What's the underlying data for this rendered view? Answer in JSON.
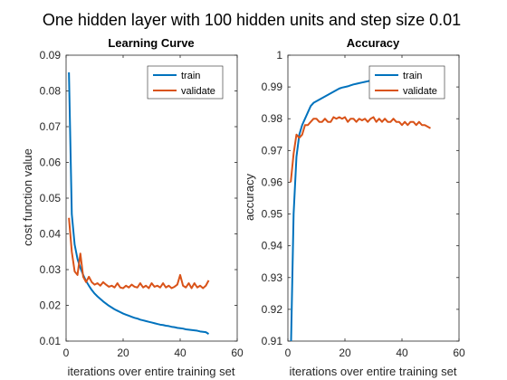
{
  "figure": {
    "title": "One hidden layer with 100 hidden units and step size 0.01"
  },
  "colors": {
    "train": "#0072BD",
    "validate": "#D95319",
    "axis": "#262626"
  },
  "chart_data": [
    {
      "type": "line",
      "title": "Learning Curve",
      "xlabel": "iterations over entire training set",
      "ylabel": "cost function value",
      "xlim": [
        0,
        60
      ],
      "ylim": [
        0.01,
        0.09
      ],
      "xticks": [
        0,
        20,
        40,
        60
      ],
      "yticks": [
        0.01,
        0.02,
        0.03,
        0.04,
        0.05,
        0.06,
        0.07,
        0.08,
        0.09
      ],
      "xtick_labels": [
        "0",
        "20",
        "40",
        "60"
      ],
      "ytick_labels": [
        "0.01",
        "0.02",
        "0.03",
        "0.04",
        "0.05",
        "0.06",
        "0.07",
        "0.08",
        "0.09"
      ],
      "legend_position": "top-right",
      "grid": false,
      "x": [
        1,
        2,
        3,
        4,
        5,
        6,
        7,
        8,
        9,
        10,
        11,
        12,
        13,
        14,
        15,
        16,
        17,
        18,
        19,
        20,
        21,
        22,
        23,
        24,
        25,
        26,
        27,
        28,
        29,
        30,
        31,
        32,
        33,
        34,
        35,
        36,
        37,
        38,
        39,
        40,
        41,
        42,
        43,
        44,
        45,
        46,
        47,
        48,
        49,
        50
      ],
      "series": [
        {
          "name": "train",
          "values": [
            0.0852,
            0.0455,
            0.037,
            0.033,
            0.0305,
            0.0285,
            0.0268,
            0.0255,
            0.0243,
            0.0233,
            0.0225,
            0.0218,
            0.0211,
            0.0205,
            0.0199,
            0.0194,
            0.0189,
            0.0185,
            0.0181,
            0.0177,
            0.0174,
            0.0171,
            0.0168,
            0.0165,
            0.0163,
            0.016,
            0.0158,
            0.0156,
            0.0154,
            0.0152,
            0.015,
            0.0148,
            0.0146,
            0.0145,
            0.0143,
            0.0142,
            0.014,
            0.0139,
            0.0137,
            0.0136,
            0.0135,
            0.0133,
            0.0132,
            0.0131,
            0.013,
            0.0129,
            0.0127,
            0.0126,
            0.0125,
            0.012
          ]
        },
        {
          "name": "validate",
          "values": [
            0.0445,
            0.035,
            0.0295,
            0.0285,
            0.0345,
            0.028,
            0.0265,
            0.028,
            0.0265,
            0.0258,
            0.0262,
            0.0255,
            0.0265,
            0.0258,
            0.0252,
            0.0255,
            0.025,
            0.0262,
            0.025,
            0.0248,
            0.0255,
            0.025,
            0.0258,
            0.0252,
            0.025,
            0.0262,
            0.025,
            0.0255,
            0.0248,
            0.0262,
            0.0252,
            0.0255,
            0.025,
            0.0262,
            0.025,
            0.0255,
            0.0248,
            0.0252,
            0.0258,
            0.0285,
            0.0255,
            0.025,
            0.0262,
            0.0248,
            0.0262,
            0.025,
            0.0255,
            0.0248,
            0.0255,
            0.027
          ]
        }
      ]
    },
    {
      "type": "line",
      "title": "Accuracy",
      "xlabel": "iterations over entire training set",
      "ylabel": "accuracy",
      "xlim": [
        0,
        60
      ],
      "ylim": [
        0.91,
        1.0
      ],
      "xticks": [
        0,
        20,
        40,
        60
      ],
      "yticks": [
        0.91,
        0.92,
        0.93,
        0.94,
        0.95,
        0.96,
        0.97,
        0.98,
        0.99,
        1.0
      ],
      "xtick_labels": [
        "0",
        "20",
        "40",
        "60"
      ],
      "ytick_labels": [
        "0.91",
        "0.92",
        "0.93",
        "0.94",
        "0.95",
        "0.96",
        "0.97",
        "0.98",
        "0.99",
        "1"
      ],
      "legend_position": "top-right",
      "grid": false,
      "x": [
        1,
        2,
        3,
        4,
        5,
        6,
        7,
        8,
        9,
        10,
        11,
        12,
        13,
        14,
        15,
        16,
        17,
        18,
        19,
        20,
        21,
        22,
        23,
        24,
        25,
        26,
        27,
        28,
        29,
        30,
        31,
        32,
        33,
        34,
        35,
        36,
        37,
        38,
        39,
        40,
        41,
        42,
        43,
        44,
        45,
        46,
        47,
        48,
        49,
        50
      ],
      "series": [
        {
          "name": "train",
          "values": [
            0.905,
            0.95,
            0.968,
            0.975,
            0.978,
            0.98,
            0.982,
            0.984,
            0.985,
            0.9855,
            0.986,
            0.9865,
            0.987,
            0.9875,
            0.988,
            0.9885,
            0.989,
            0.9895,
            0.9898,
            0.99,
            0.9902,
            0.9905,
            0.9908,
            0.991,
            0.9912,
            0.9914,
            0.9916,
            0.9918,
            0.992,
            0.9922,
            0.9924,
            0.9926,
            0.9928,
            0.993,
            0.9932,
            0.9934,
            0.9936,
            0.9938,
            0.994,
            0.9942,
            0.9944,
            0.9946,
            0.9948,
            0.995,
            0.9952,
            0.9954,
            0.9956,
            0.9958,
            0.996,
            0.9962
          ]
        },
        {
          "name": "validate",
          "values": [
            0.96,
            0.969,
            0.975,
            0.974,
            0.975,
            0.978,
            0.978,
            0.979,
            0.98,
            0.98,
            0.979,
            0.979,
            0.98,
            0.979,
            0.979,
            0.9805,
            0.98,
            0.9805,
            0.98,
            0.9805,
            0.979,
            0.98,
            0.98,
            0.979,
            0.98,
            0.9795,
            0.98,
            0.979,
            0.98,
            0.9805,
            0.979,
            0.98,
            0.979,
            0.98,
            0.979,
            0.979,
            0.98,
            0.979,
            0.979,
            0.978,
            0.979,
            0.978,
            0.979,
            0.979,
            0.978,
            0.979,
            0.978,
            0.978,
            0.9775,
            0.977
          ]
        }
      ]
    }
  ]
}
